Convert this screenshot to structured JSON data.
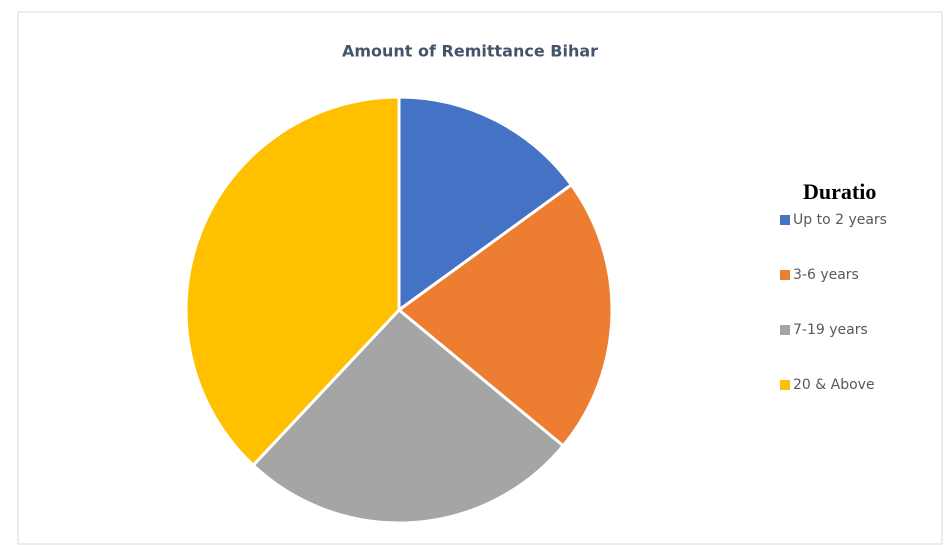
{
  "chart_data": {
    "type": "pie",
    "title": "Amount of Remittance Bihar",
    "legend_title": "Duratio",
    "categories": [
      "Up to 2 years",
      "3-6 years",
      "7-19 years",
      "20 & Above"
    ],
    "values": [
      15,
      21,
      26,
      38
    ],
    "colors": [
      "#4472c4",
      "#ed7d31",
      "#a5a5a5",
      "#ffc000"
    ],
    "legend": "right"
  }
}
